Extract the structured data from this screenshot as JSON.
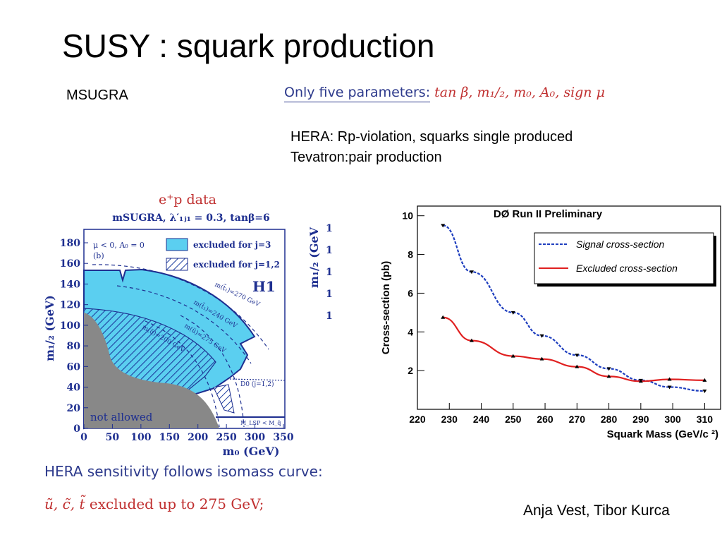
{
  "slide": {
    "title": "SUSY : squark production",
    "msugra_label": "MSUGRA",
    "params_lead": "Only five parameters:",
    "params_math": "tan β, m₁/₂, m₀, A₀, sign μ",
    "hera_line1": "HERA: Rp-violation, squarks single produced",
    "hera_line2": "Tevatron:pair production",
    "authors": "Anja Vest, Tibor Kurca",
    "sensitivity": "HERA sensitivity follows isomass curve:",
    "excluded_particles": "ũ, c̃, t̃",
    "excluded_text": "excluded up to 275 GeV;"
  },
  "h1_plot": {
    "top_label": "e⁺p data",
    "subtitle": "mSUGRA, λ′₁ⱼ₁ = 0.3, tanβ=6",
    "panel_label_1": "μ < 0, A₀ = 0",
    "panel_label_2": "(b)",
    "legend_j3": "excluded for j=3",
    "legend_j12": "excluded for j=1,2",
    "logo": "H1",
    "contour_labels": [
      "m(t̃₁)=270 GeV",
      "m(t̃₁)=240 GeV",
      "m(ũ)=275 GeV",
      "m(ũ)=200 GeV"
    ],
    "d0_label": "D0 (j=1,2)",
    "lsp_label": "M_LSP < M_q̃",
    "not_allowed": "not allowed",
    "ylabel": "m₁/₂ (GeV)",
    "xlabel": "m₀ (GeV)",
    "y_ticks": [
      "0",
      "20",
      "40",
      "60",
      "80",
      "100",
      "120",
      "140",
      "160",
      "180"
    ],
    "x_ticks": [
      "0",
      "50",
      "100",
      "150",
      "200",
      "250",
      "300",
      "350"
    ],
    "right_ylabel": "m₁/₂ (GeV",
    "right_ticks": [
      "1",
      "1",
      "1",
      "1",
      "1"
    ],
    "colors": {
      "j3": "#5bcff0",
      "j12_hatch": "#1e3fa0",
      "not_allowed": "#888888",
      "text": "#1e2f90"
    }
  },
  "chart_data": {
    "type": "line",
    "title": "DØ Run II Preliminary",
    "xlabel": "Squark Mass (GeV/c ²)",
    "ylabel": "Cross-section (pb)",
    "xlim": [
      220,
      315
    ],
    "ylim": [
      0,
      10.5
    ],
    "x_ticks": [
      220,
      230,
      240,
      250,
      260,
      270,
      280,
      290,
      300,
      310
    ],
    "y_ticks": [
      2,
      4,
      6,
      8,
      10
    ],
    "legend_position": "top-right",
    "series": [
      {
        "name": "Signal cross-section",
        "color": "#1f3fbf",
        "style": "dashed",
        "x": [
          228,
          237,
          250,
          259,
          270,
          280,
          290,
          299,
          310
        ],
        "y": [
          9.5,
          7.1,
          5.0,
          3.8,
          2.8,
          2.1,
          1.5,
          1.15,
          0.95
        ]
      },
      {
        "name": "Excluded cross-section",
        "color": "#e02020",
        "style": "solid",
        "x": [
          228,
          237,
          250,
          259,
          270,
          280,
          290,
          299,
          310
        ],
        "y": [
          4.75,
          3.55,
          2.75,
          2.6,
          2.2,
          1.7,
          1.45,
          1.55,
          1.5
        ]
      }
    ]
  }
}
